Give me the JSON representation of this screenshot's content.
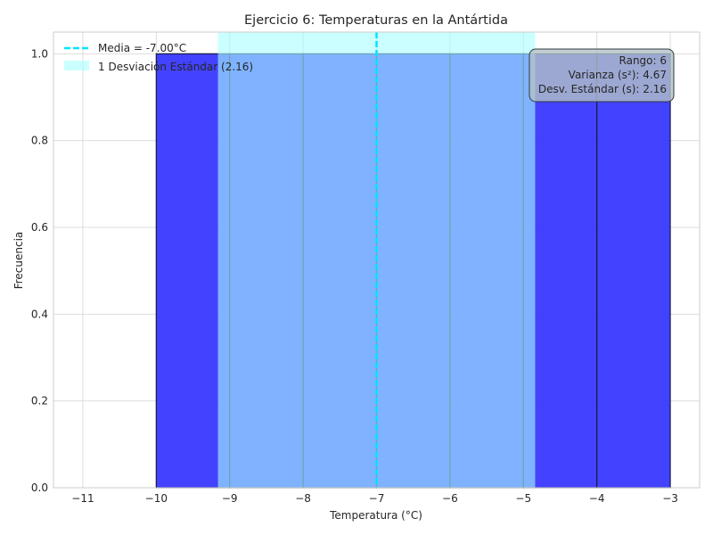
{
  "chart_data": {
    "type": "bar",
    "title": "Ejercicio 6: Temperaturas en la Antártida",
    "xlabel": "Temperatura (°C)",
    "ylabel": "Frecuencia",
    "xlim": [
      -11.4,
      -2.6
    ],
    "ylim": [
      0,
      1.05
    ],
    "xticks": [
      -11,
      -10,
      -9,
      -8,
      -7,
      -6,
      -5,
      -4,
      -3
    ],
    "xtick_labels": [
      "−11",
      "−10",
      "−9",
      "−8",
      "−7",
      "−6",
      "−5",
      "−4",
      "−3"
    ],
    "yticks": [
      0.0,
      0.2,
      0.4,
      0.6,
      0.8,
      1.0
    ],
    "ytick_labels": [
      "0.0",
      "0.2",
      "0.4",
      "0.6",
      "0.8",
      "1.0"
    ],
    "grid": true,
    "bins": [
      {
        "start": -10,
        "end": -9,
        "count": 1
      },
      {
        "start": -9,
        "end": -8,
        "count": 1
      },
      {
        "start": -8,
        "end": -7,
        "count": 1
      },
      {
        "start": -7,
        "end": -6,
        "count": 1
      },
      {
        "start": -6,
        "end": -5,
        "count": 1
      },
      {
        "start": -5,
        "end": -4,
        "count": 1
      },
      {
        "start": -4,
        "end": -3,
        "count": 1
      }
    ],
    "bar_color": "#3333ff",
    "mean": -7.0,
    "mean_color": "#00e5ff",
    "std": 2.16,
    "std_band_color": "#a8ffff",
    "legend": {
      "position": "top-left",
      "entries": [
        {
          "label": "Media = -7.00°C",
          "kind": "dashed-line",
          "color": "#00e5ff"
        },
        {
          "label": "1 Desviación Estándar (2.16)",
          "kind": "patch",
          "color": "#a8ffff"
        }
      ]
    },
    "stats_box": {
      "position": "top-right",
      "lines": [
        "Rango: 6",
        "Varianza (s²): 4.67",
        "Desv. Estándar (s): 2.16"
      ]
    }
  }
}
